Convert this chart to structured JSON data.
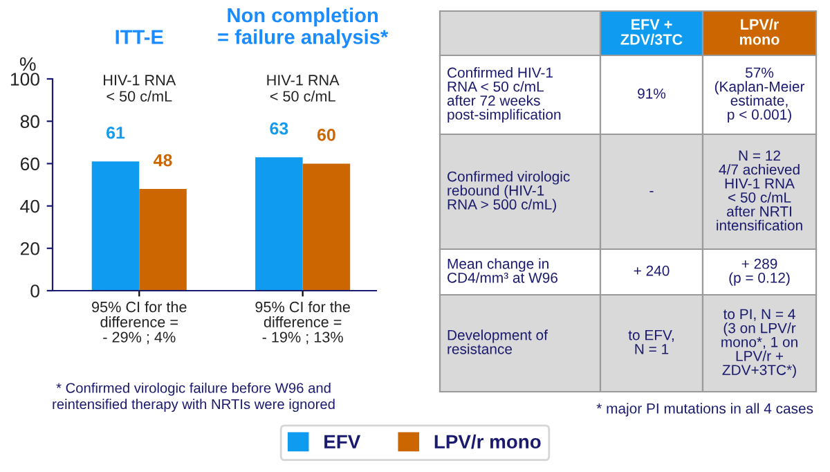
{
  "chart_data": [
    {
      "type": "bar",
      "categories": [
        "ITT-E",
        "Non completion\n= failure analysis*"
      ],
      "ylabel": "%",
      "series": [
        {
          "name": "EFV",
          "color": "#0f9bf0",
          "values": [
            61,
            63
          ]
        },
        {
          "name": "LPV/r mono",
          "color": "#cc6600",
          "values": [
            48,
            60
          ]
        }
      ],
      "ylim": [
        0,
        100
      ],
      "yticks": [
        0,
        20,
        40,
        60,
        80,
        100
      ],
      "data_labels": true,
      "grid": false,
      "legend": "bottom",
      "annotations": [
        "HIV-1 RNA\n< 50 c/mL",
        "HIV-1 RNA\n< 50 c/mL",
        "95% CI for the\ndifference =\n- 29% ; 4%",
        "95% CI for the\ndifference =\n- 19% ; 13%",
        "* Confirmed virologic failure before W96 and\nreintensified therapy with NRTIs were ignored"
      ]
    },
    {
      "type": "other",
      "categories": [
        "EFV +\nZDV/3TC",
        "LPV/r\nmono"
      ],
      "colors": [
        "#0f9bf0",
        "#cc6600"
      ],
      "y_categories": [
        "Confirmed HIV-1\nRNA < 50 c/mL\nafter 72 weeks\npost-simplification",
        "Confirmed virologic\nrebound (HIV-1\nRNA > 500 c/mL)",
        "Mean change in\nCD4/mm³ at W96",
        "Development of\nresistance"
      ],
      "cell_labels": [
        [
          "91%",
          "57%\n(Kaplan-Meier\nestimate,\np < 0.001)"
        ],
        [
          "-",
          "N = 12\n4/7 achieved\nHIV-1 RNA\n< 50 c/mL\nafter NRTI\nintensification"
        ],
        [
          "+ 240",
          "+ 289\n(p = 0.12)"
        ],
        [
          "to EFV,\nN = 1",
          "to PI, N = 4\n(3 on LPV/r\nmono*, 1 on\nLPV/r +\nZDV+3TC*)"
        ]
      ],
      "annotations": [
        "* major PI mutations in all 4 cases"
      ]
    }
  ]
}
